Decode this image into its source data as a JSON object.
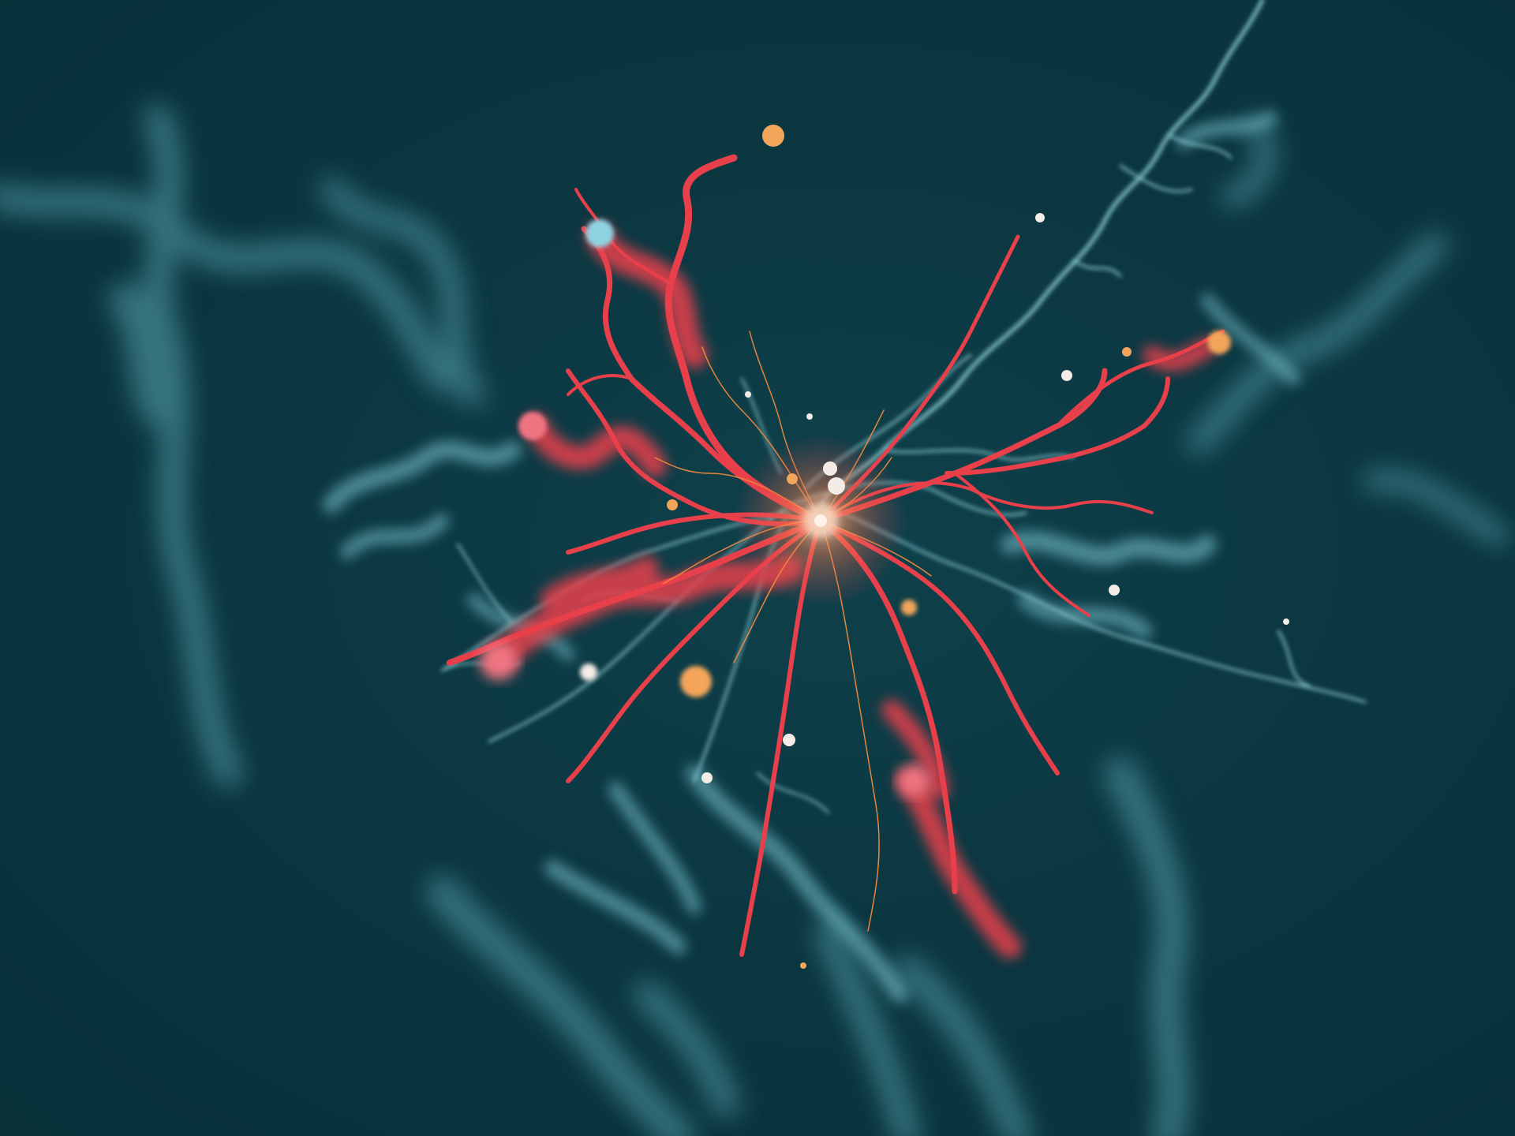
{
  "scene": {
    "subject": "neuron-trace-render",
    "palette": {
      "background": "#0b3741",
      "background_deep": "#08313a",
      "teal_trace": "#7fc6cf",
      "teal_blur": "#5aa8b2",
      "red_trace": "#e8404b",
      "orange_fine": "#f08a3c",
      "node_orange": "#f3a55a",
      "node_white": "#f4ece6",
      "node_pink": "#f07482",
      "node_cyan": "#8fd2e0"
    }
  }
}
